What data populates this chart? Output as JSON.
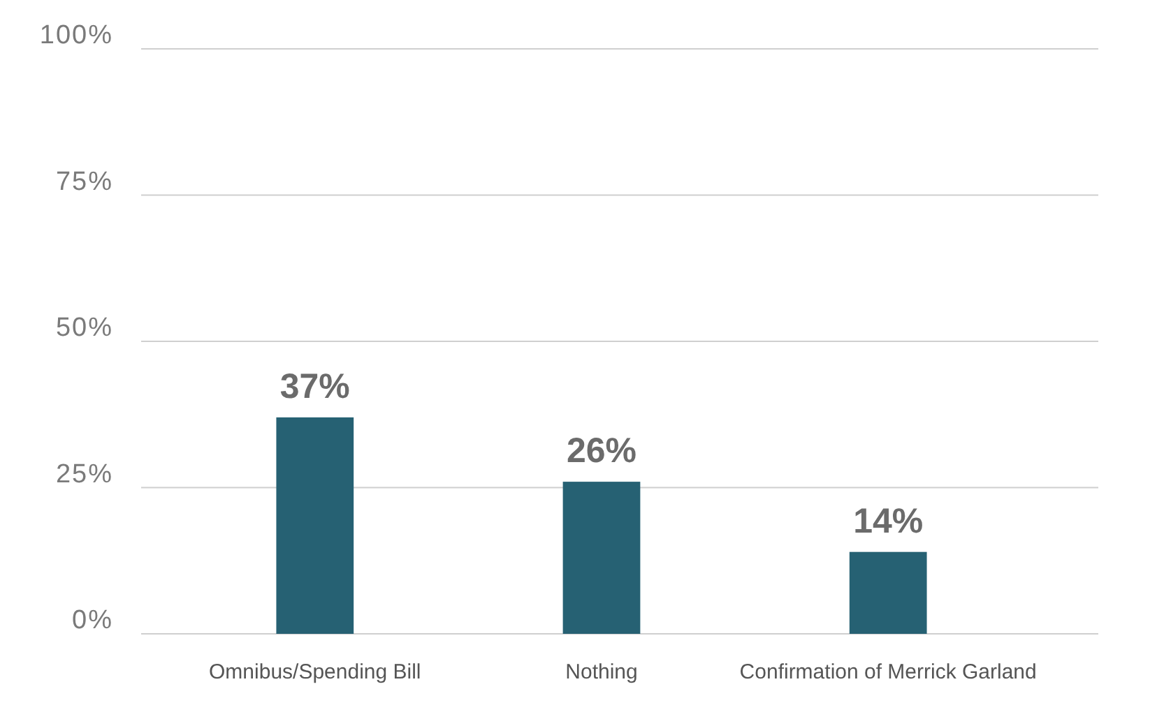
{
  "chart_data": {
    "type": "bar",
    "categories": [
      "Omnibus/Spending Bill",
      "Nothing",
      "Confirmation of Merrick Garland"
    ],
    "values": [
      37,
      26,
      14
    ],
    "color": "#266173",
    "ylim": [
      0,
      100
    ],
    "yticks": [
      {
        "value": 0,
        "label": "0%"
      },
      {
        "value": 25,
        "label": "25%"
      },
      {
        "value": 50,
        "label": "50%"
      },
      {
        "value": 75,
        "label": "75%"
      },
      {
        "value": 100,
        "label": "100%"
      }
    ],
    "grid": "y",
    "value_labels": [
      "37%",
      "26%",
      "14%"
    ]
  }
}
